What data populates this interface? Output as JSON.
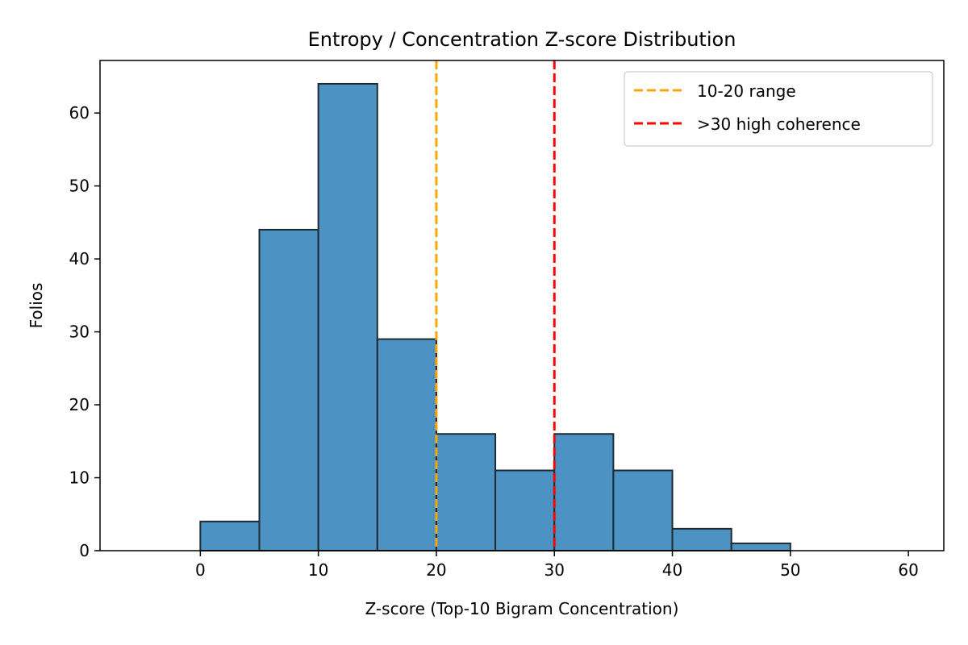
{
  "chart_data": {
    "type": "bar",
    "title": "Entropy / Concentration Z-score Distribution",
    "xlabel": "Z-score (Top-10 Bigram Concentration)",
    "ylabel": "Folios",
    "bins": [
      {
        "x0": 0,
        "x1": 5,
        "count": 4
      },
      {
        "x0": 5,
        "x1": 10,
        "count": 44
      },
      {
        "x0": 10,
        "x1": 15,
        "count": 64
      },
      {
        "x0": 15,
        "x1": 20,
        "count": 29
      },
      {
        "x0": 20,
        "x1": 25,
        "count": 16
      },
      {
        "x0": 25,
        "x1": 30,
        "count": 11
      },
      {
        "x0": 30,
        "x1": 35,
        "count": 16
      },
      {
        "x0": 35,
        "x1": 40,
        "count": 11
      },
      {
        "x0": 40,
        "x1": 45,
        "count": 3
      },
      {
        "x0": 45,
        "x1": 50,
        "count": 1
      }
    ],
    "xlim": [
      -8.5,
      63
    ],
    "ylim": [
      0,
      67.2
    ],
    "xticks": [
      0,
      10,
      20,
      30,
      40,
      50,
      60
    ],
    "yticks": [
      0,
      10,
      20,
      30,
      40,
      50,
      60
    ],
    "bar_color": "#4c93c3",
    "bar_edge_color": "#1f2a33",
    "reference_lines": [
      {
        "x": 20,
        "label": "10-20 range",
        "color": "#ffa500",
        "style": "dashed"
      },
      {
        "x": 30,
        "label": ">30 high coherence",
        "color": "#ff0000",
        "style": "dashed"
      }
    ],
    "legend": {
      "position": "top-right"
    },
    "grid": false
  }
}
